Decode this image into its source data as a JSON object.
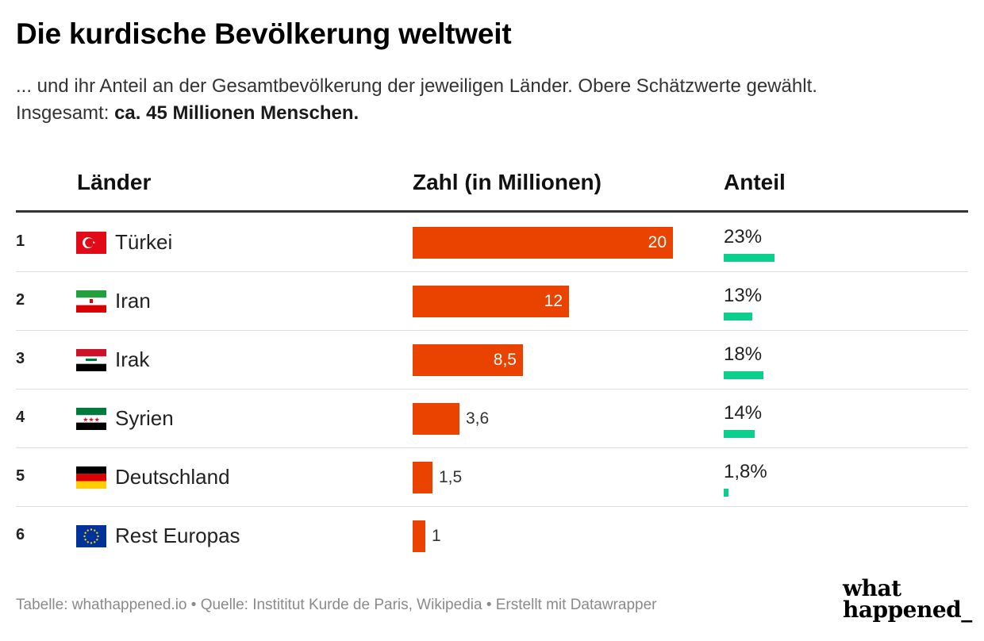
{
  "title": "Die kurdische Bevölkerung weltweit",
  "subtitle": {
    "line1": "... und ihr Anteil an der Gesamtbevölkerung der jeweiligen Länder. Obere Schätzwerte gewählt.",
    "line2_prefix": "Insgesamt: ",
    "line2_bold": "ca. 45 Millionen Menschen."
  },
  "columns": {
    "country": "Länder",
    "number": "Zahl (in Millionen)",
    "share": "Anteil"
  },
  "colors": {
    "bar": "#ea4300",
    "share_bar": "#0ccf8e"
  },
  "chart_data": {
    "type": "table",
    "value_max": 20,
    "share_max": 23,
    "rows": [
      {
        "rank": "1",
        "flag": "turkey-flag",
        "country": "Türkei",
        "value": 20,
        "value_label": "20",
        "share": 23,
        "share_label": "23%"
      },
      {
        "rank": "2",
        "flag": "iran-flag",
        "country": "Iran",
        "value": 12,
        "value_label": "12",
        "share": 13,
        "share_label": "13%"
      },
      {
        "rank": "3",
        "flag": "iraq-flag",
        "country": "Irak",
        "value": 8.5,
        "value_label": "8,5",
        "share": 18,
        "share_label": "18%"
      },
      {
        "rank": "4",
        "flag": "syria-flag",
        "country": "Syrien",
        "value": 3.6,
        "value_label": "3,6",
        "share": 14,
        "share_label": "14%"
      },
      {
        "rank": "5",
        "flag": "germany-flag",
        "country": "Deutschland",
        "value": 1.5,
        "value_label": "1,5",
        "share": 1.8,
        "share_label": "1,8%"
      },
      {
        "rank": "6",
        "flag": "eu-flag",
        "country": "Rest Europas",
        "value": 1,
        "value_label": "1",
        "share": null,
        "share_label": ""
      }
    ]
  },
  "footer": "Tabelle: whathappened.io  • Quelle: Instititut Kurde de Paris, Wikipedia • Erstellt mit Datawrapper",
  "logo": {
    "line1": "what",
    "line2": "happened_"
  }
}
